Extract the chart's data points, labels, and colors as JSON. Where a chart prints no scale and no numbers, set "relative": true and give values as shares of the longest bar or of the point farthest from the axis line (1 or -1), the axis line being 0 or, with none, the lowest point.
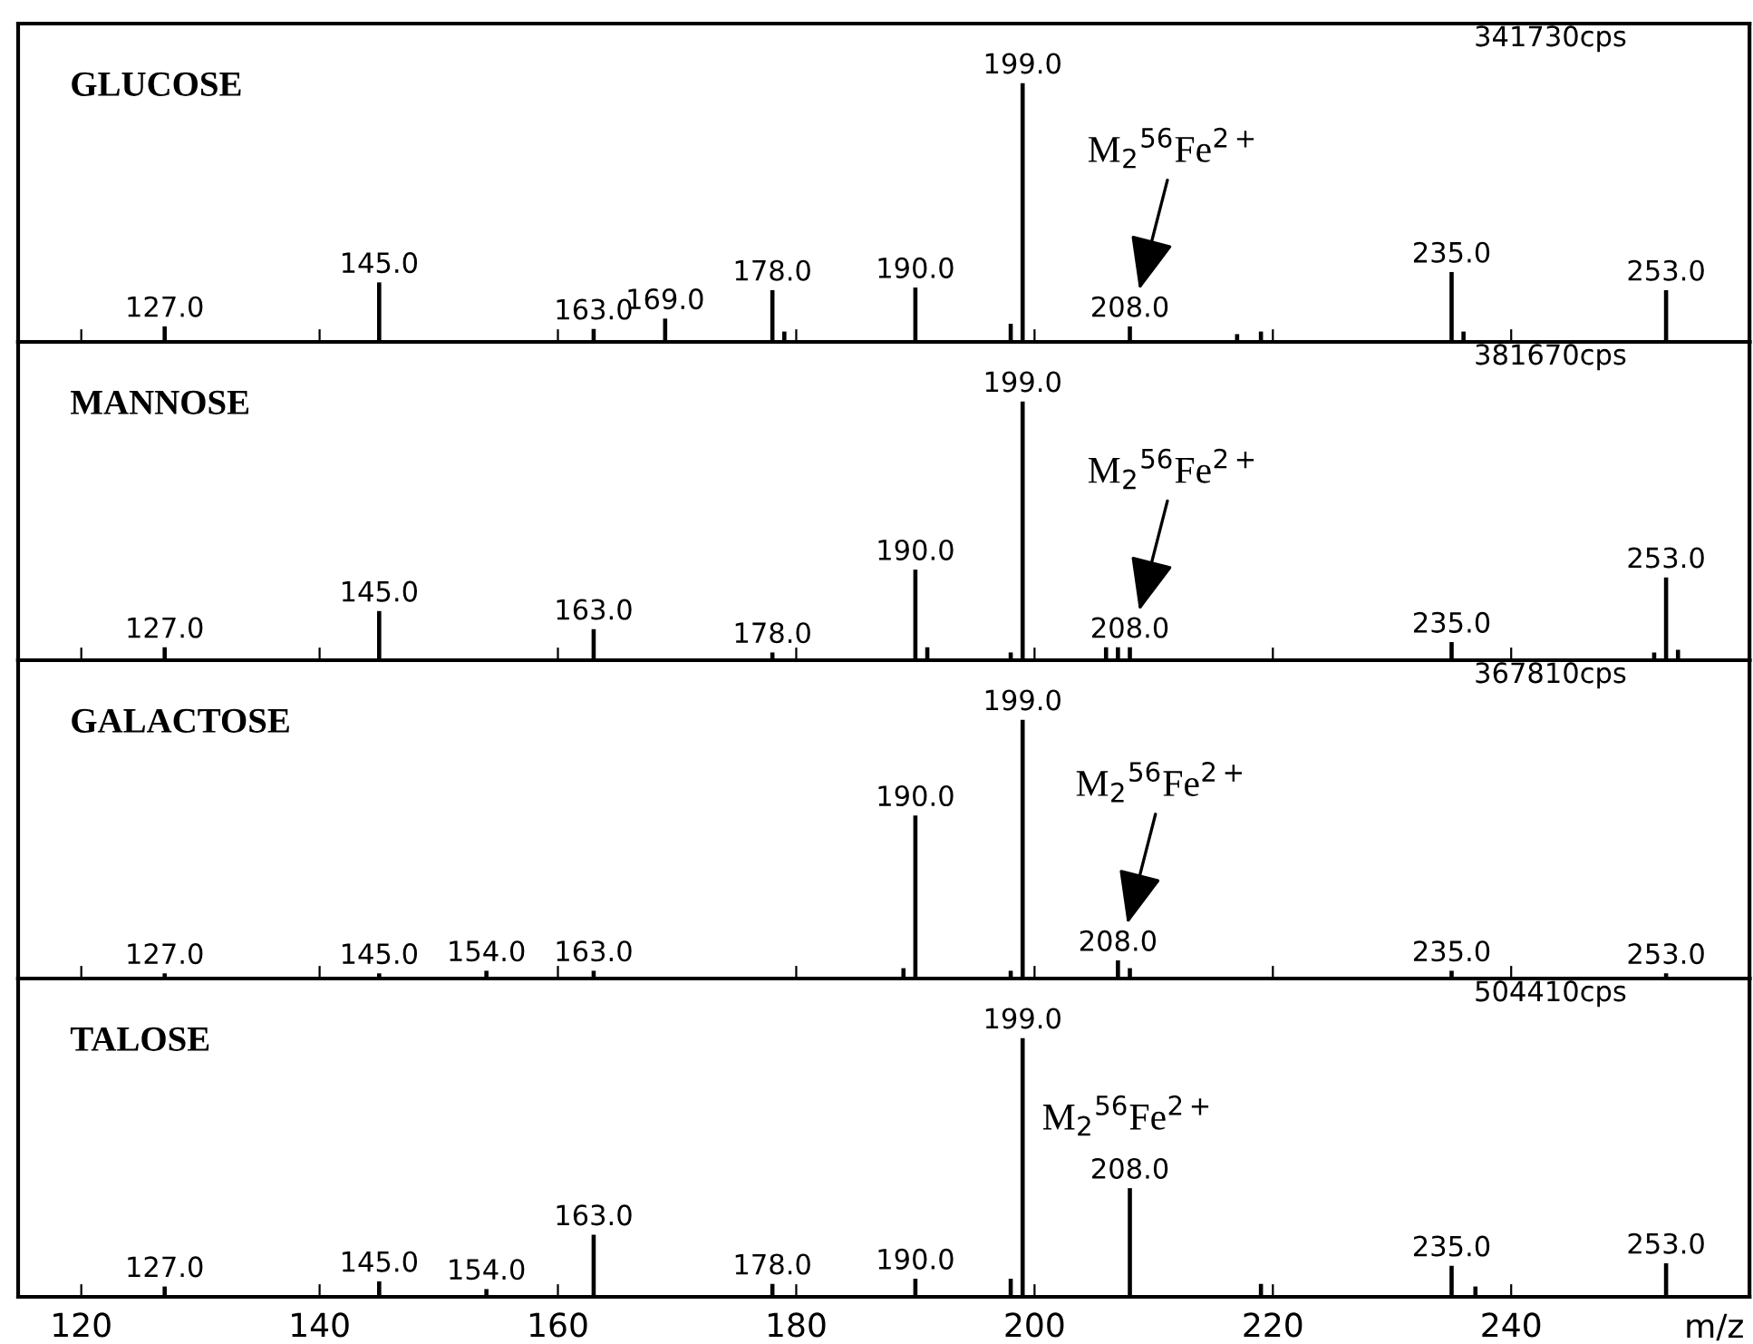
{
  "chart_data": [
    {
      "type": "bar",
      "relative": true,
      "color": "#000000",
      "xlim": [
        114.7,
        260
      ],
      "xticks": [
        120,
        140,
        160,
        180,
        200,
        220,
        240
      ],
      "tick_labels": false,
      "x": [
        127,
        145,
        163,
        169,
        178,
        179,
        190,
        198,
        199,
        208,
        217,
        219,
        235,
        236,
        253
      ],
      "values": [
        0.06,
        0.23,
        0.05,
        0.09,
        0.2,
        0.04,
        0.21,
        0.07,
        1,
        0.06,
        0.03,
        0.04,
        0.27,
        0.04,
        0.2
      ],
      "annotations": [
        "GLUCOSE",
        "341730cps",
        {
          "text": "127.0",
          "x": 127,
          "y": 0.06
        },
        {
          "text": "145.0",
          "x": 145,
          "y": 0.23
        },
        {
          "text": "163.0",
          "x": 163,
          "y": 0.05
        },
        {
          "text": "169.0",
          "x": 169,
          "y": 0.09
        },
        {
          "text": "178.0",
          "x": 178,
          "y": 0.2
        },
        {
          "text": "190.0",
          "x": 190,
          "y": 0.21
        },
        {
          "text": "199.0",
          "x": 199,
          "y": 1
        },
        {
          "text": "208.0",
          "x": 208,
          "y": 0.06
        },
        "M$_{2}$$^{56}$Fe$^{2+}$",
        {
          "text": "235.0",
          "x": 235,
          "y": 0.27
        },
        {
          "text": "253.0",
          "x": 253,
          "y": 0.2
        }
      ]
    },
    {
      "type": "bar",
      "relative": true,
      "color": "#000000",
      "xlim": [
        114.7,
        260
      ],
      "xticks": [
        120,
        140,
        160,
        180,
        200,
        220,
        240
      ],
      "tick_labels": false,
      "x": [
        127,
        145,
        163,
        178,
        190,
        191,
        198,
        199,
        206,
        207,
        208,
        235,
        252,
        253,
        254
      ],
      "values": [
        0.05,
        0.19,
        0.12,
        0.03,
        0.35,
        0.05,
        0.03,
        1,
        0.05,
        0.05,
        0.05,
        0.07,
        0.03,
        0.32,
        0.04
      ],
      "annotations": [
        "MANNOSE",
        "381670cps",
        {
          "text": "127.0",
          "x": 127,
          "y": 0.05
        },
        {
          "text": "145.0",
          "x": 145,
          "y": 0.19
        },
        {
          "text": "163.0",
          "x": 163,
          "y": 0.12
        },
        {
          "text": "178.0",
          "x": 178,
          "y": 0.03
        },
        {
          "text": "190.0",
          "x": 190,
          "y": 0.35
        },
        {
          "text": "199.0",
          "x": 199,
          "y": 1
        },
        {
          "text": "208.0",
          "x": 208,
          "y": 0.05
        },
        "M$_{2}$$^{56}$Fe$^{2+}$",
        {
          "text": "235.0",
          "x": 235,
          "y": 0.07
        },
        {
          "text": "253.0",
          "x": 253,
          "y": 0.32
        }
      ]
    },
    {
      "type": "bar",
      "relative": true,
      "color": "#000000",
      "xlim": [
        114.7,
        260
      ],
      "xticks": [
        120,
        140,
        160,
        180,
        200,
        220,
        240
      ],
      "tick_labels": false,
      "x": [
        127,
        145,
        154,
        163,
        189,
        190,
        198,
        199,
        207,
        208,
        235,
        253
      ],
      "values": [
        0.02,
        0.02,
        0.03,
        0.03,
        0.04,
        0.63,
        0.03,
        1,
        0.07,
        0.04,
        0.03,
        0.02
      ],
      "annotations": [
        "GALACTOSE",
        "367810cps",
        {
          "text": "127.0",
          "x": 127,
          "y": 0.02
        },
        {
          "text": "145.0",
          "x": 145,
          "y": 0.02
        },
        {
          "text": "154.0",
          "x": 154,
          "y": 0.03
        },
        {
          "text": "163.0",
          "x": 163,
          "y": 0.03
        },
        {
          "text": "190.0",
          "x": 190,
          "y": 0.63
        },
        {
          "text": "199.0",
          "x": 199,
          "y": 1
        },
        {
          "text": "208.0",
          "x": 207,
          "y": 0.07
        },
        "M$_{2}$$^{56}$Fe$^{2+}$",
        {
          "text": "235.0",
          "x": 235,
          "y": 0.03
        },
        {
          "text": "253.0",
          "x": 253,
          "y": 0.02
        }
      ]
    },
    {
      "type": "bar",
      "relative": true,
      "color": "#000000",
      "xlim": [
        114.7,
        260
      ],
      "xticks": [
        120,
        140,
        160,
        180,
        200,
        220,
        240
      ],
      "tick_labels": "x",
      "xlabel": "m/z",
      "x": [
        127,
        145,
        154,
        163,
        178,
        190,
        198,
        199,
        208,
        219,
        235,
        237,
        253
      ],
      "values": [
        0.04,
        0.06,
        0.03,
        0.24,
        0.05,
        0.07,
        0.07,
        1,
        0.42,
        0.05,
        0.12,
        0.04,
        0.13
      ],
      "annotations": [
        "TALOSE",
        "504410cps",
        {
          "text": "127.0",
          "x": 127,
          "y": 0.04
        },
        {
          "text": "145.0",
          "x": 145,
          "y": 0.06
        },
        {
          "text": "154.0",
          "x": 154,
          "y": 0.03
        },
        {
          "text": "163.0",
          "x": 163,
          "y": 0.24
        },
        {
          "text": "178.0",
          "x": 178,
          "y": 0.05
        },
        {
          "text": "190.0",
          "x": 190,
          "y": 0.07
        },
        {
          "text": "199.0",
          "x": 199,
          "y": 1
        },
        {
          "text": "208.0",
          "x": 208,
          "y": 0.42
        },
        {
          "text": "235.0",
          "x": 235,
          "y": 0.12
        },
        {
          "text": "253.0",
          "x": 253,
          "y": 0.13
        },
        {
          "text": "M$_{2}$$^{56}$Fe$^{2+}$",
          "x": 208,
          "y": 0.42
        }
      ]
    }
  ]
}
